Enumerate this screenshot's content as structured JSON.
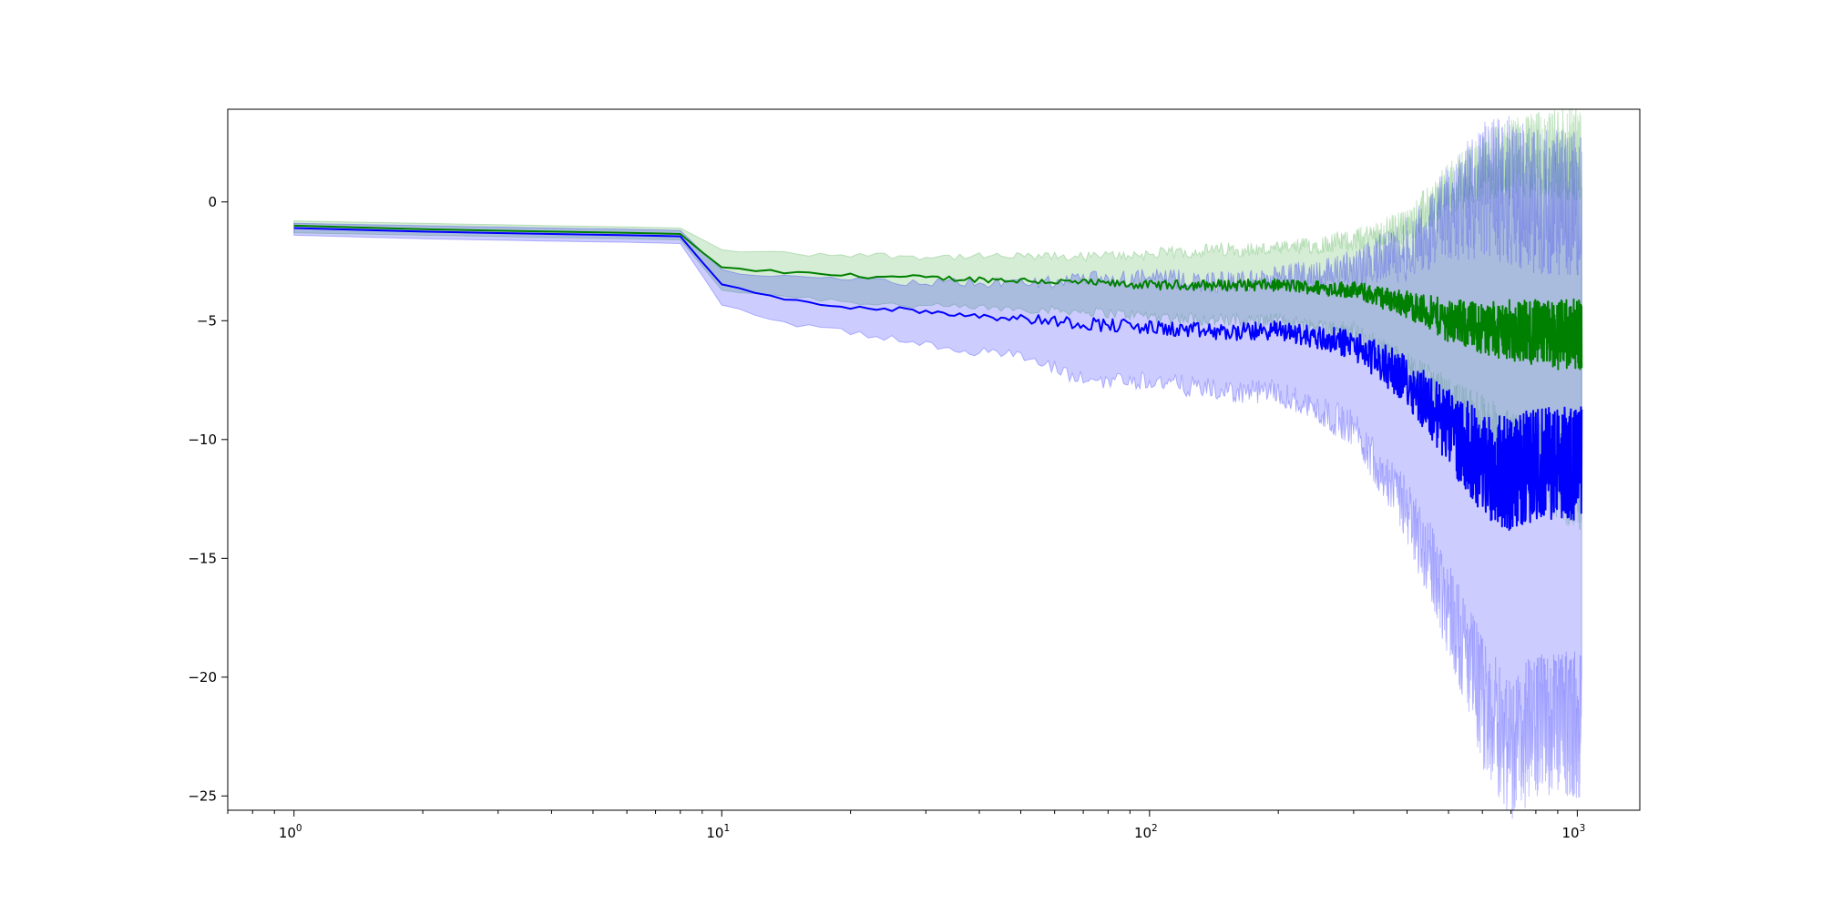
{
  "chart_data": {
    "type": "line",
    "title": "",
    "xlabel": "",
    "ylabel": "",
    "x_scale": "log",
    "xlim": [
      0.7,
      1400
    ],
    "ylim": [
      -25.6,
      3.9
    ],
    "grid": false,
    "legend": "none",
    "x_ticks": [
      {
        "base": "10",
        "exp": "0",
        "value": 1
      },
      {
        "base": "10",
        "exp": "1",
        "value": 10
      },
      {
        "base": "10",
        "exp": "2",
        "value": 100
      },
      {
        "base": "10",
        "exp": "3",
        "value": 1000
      }
    ],
    "y_ticks": [
      {
        "label": "0",
        "value": 0
      },
      {
        "label": "−5",
        "value": -5
      },
      {
        "label": "−10",
        "value": -10
      },
      {
        "label": "−15",
        "value": -15
      },
      {
        "label": "−20",
        "value": -20
      },
      {
        "label": "−25",
        "value": -25
      }
    ],
    "series": [
      {
        "color": "#008000",
        "band_color": "#2ca02c",
        "x": [
          1,
          2,
          4,
          6,
          8,
          10,
          15,
          20,
          30,
          50,
          70,
          100,
          150,
          200,
          300,
          400,
          500,
          600,
          700,
          800,
          900,
          1024
        ],
        "mean": [
          -1.0,
          -1.15,
          -1.25,
          -1.3,
          -1.35,
          -2.8,
          -3.0,
          -3.1,
          -3.2,
          -3.3,
          -3.4,
          -3.5,
          -3.5,
          -3.5,
          -3.7,
          -4.3,
          -5.0,
          -5.3,
          -5.4,
          -5.5,
          -5.6,
          -5.5
        ],
        "lower": [
          -1.3,
          -1.4,
          -1.5,
          -1.55,
          -1.6,
          -3.7,
          -4.0,
          -4.2,
          -4.4,
          -4.5,
          -4.6,
          -4.8,
          -5.0,
          -5.0,
          -5.5,
          -7.0,
          -8.5,
          -9.5,
          -10.5,
          -11.0,
          -11.5,
          -12.0
        ],
        "upper": [
          -0.8,
          -0.9,
          -1.0,
          -1.05,
          -1.1,
          -2.0,
          -2.2,
          -2.2,
          -2.3,
          -2.3,
          -2.3,
          -2.2,
          -2.0,
          -2.0,
          -1.6,
          -1.0,
          0.5,
          1.5,
          1.8,
          2.0,
          2.0,
          2.0
        ]
      },
      {
        "color": "#0000ff",
        "band_color": "#0000ff",
        "x": [
          1,
          2,
          4,
          6,
          8,
          10,
          15,
          20,
          30,
          50,
          70,
          100,
          150,
          200,
          300,
          400,
          500,
          600,
          700,
          800,
          900,
          1024
        ],
        "mean": [
          -1.1,
          -1.25,
          -1.35,
          -1.4,
          -1.45,
          -3.5,
          -4.2,
          -4.4,
          -4.6,
          -4.9,
          -5.1,
          -5.3,
          -5.5,
          -5.4,
          -6.0,
          -7.5,
          -9.5,
          -11.0,
          -11.5,
          -11.0,
          -11.0,
          -11.0
        ],
        "lower": [
          -1.4,
          -1.55,
          -1.65,
          -1.7,
          -1.75,
          -4.3,
          -5.2,
          -5.5,
          -6.0,
          -6.5,
          -7.5,
          -7.5,
          -8.0,
          -8.0,
          -9.5,
          -13.0,
          -17.0,
          -21.0,
          -23.0,
          -22.0,
          -22.0,
          -22.0
        ],
        "upper": [
          -0.9,
          -1.0,
          -1.1,
          -1.15,
          -1.2,
          -2.9,
          -3.2,
          -3.3,
          -3.4,
          -3.4,
          -3.3,
          -3.2,
          -3.4,
          -3.2,
          -2.8,
          -2.0,
          -0.5,
          0.5,
          0.5,
          0.0,
          0.0,
          0.0
        ]
      }
    ]
  }
}
